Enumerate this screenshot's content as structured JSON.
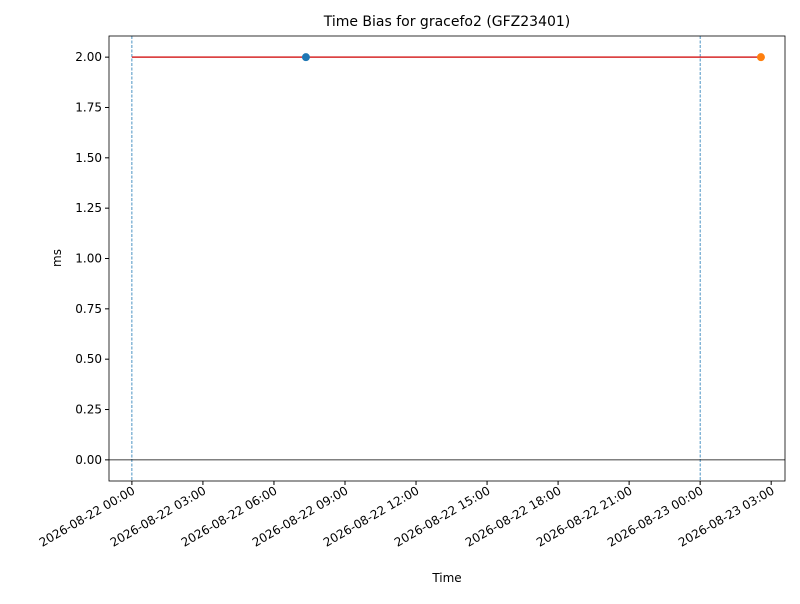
{
  "chart_data": {
    "type": "line",
    "title": "Time Bias for gracefo2 (GFZ23401)",
    "xlabel": "Time",
    "ylabel": "ms",
    "series": [
      {
        "kind": "line",
        "color": "#d62728",
        "x": [
          "2026-08-22 00:00",
          "2026-08-23 02:34"
        ],
        "values": [
          2.0,
          2.0
        ]
      },
      {
        "kind": "point",
        "color": "#1f77b4",
        "x": [
          "2026-08-22 07:21"
        ],
        "values": [
          2.0
        ]
      },
      {
        "kind": "point",
        "color": "#ff7f0e",
        "x": [
          "2026-08-23 02:34"
        ],
        "values": [
          2.0
        ]
      }
    ],
    "vlines": [
      "2026-08-22 00:00",
      "2026-08-23 00:00"
    ],
    "vline_color": "#1f77b4",
    "hline": 0,
    "hline_color": "#000000",
    "xlim": [
      "2026-08-21 23:02",
      "2026-08-23 03:35"
    ],
    "xticks": [
      "2026-08-22 00:00",
      "2026-08-22 03:00",
      "2026-08-22 06:00",
      "2026-08-22 09:00",
      "2026-08-22 12:00",
      "2026-08-22 15:00",
      "2026-08-22 18:00",
      "2026-08-22 21:00",
      "2026-08-23 00:00",
      "2026-08-23 03:00"
    ],
    "ylim": [
      -0.105,
      2.105
    ],
    "yticks": [
      {
        "value": 0,
        "label": "0.00"
      },
      {
        "value": 0.25,
        "label": "0.25"
      },
      {
        "value": 0.5,
        "label": "0.50"
      },
      {
        "value": 0.75,
        "label": "0.75"
      },
      {
        "value": 1,
        "label": "1.00"
      },
      {
        "value": 1.25,
        "label": "1.25"
      },
      {
        "value": 1.5,
        "label": "1.50"
      },
      {
        "value": 1.75,
        "label": "1.75"
      },
      {
        "value": 2,
        "label": "2.00"
      }
    ]
  }
}
